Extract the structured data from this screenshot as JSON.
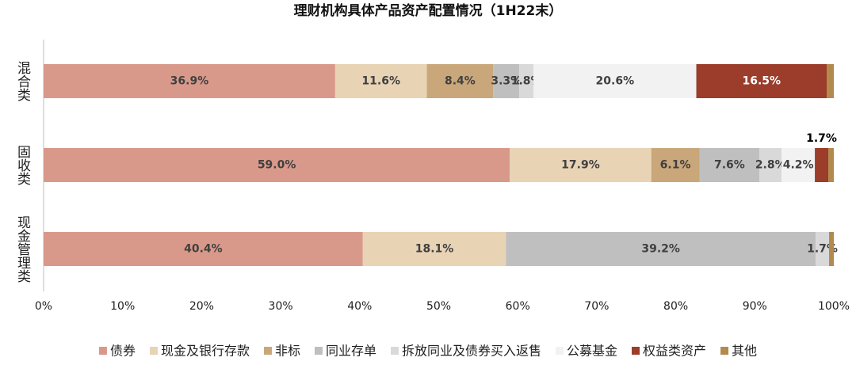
{
  "chart_data": {
    "type": "stacked-barh",
    "title": "理财机构具体产品资产配置情况（1H22末）",
    "categories": [
      "混合类",
      "固收类",
      "现金管理类"
    ],
    "series": [
      {
        "name": "债券",
        "color": "#d9998a",
        "values": [
          36.9,
          59.0,
          40.4
        ],
        "value_labels": [
          "36.9%",
          "59.0%",
          "40.4%"
        ]
      },
      {
        "name": "现金及银行存款",
        "color": "#e8d3b5",
        "values": [
          11.6,
          17.9,
          18.1
        ],
        "value_labels": [
          "11.6%",
          "17.9%",
          "18.1%"
        ]
      },
      {
        "name": "非标",
        "color": "#c9a77a",
        "values": [
          8.4,
          6.1,
          0
        ],
        "value_labels": [
          "8.4%",
          "6.1%",
          null
        ]
      },
      {
        "name": "同业存单",
        "color": "#bfbfbf",
        "values": [
          3.3,
          7.6,
          39.2
        ],
        "value_labels": [
          "3.3%",
          "7.6%",
          "39.2%"
        ]
      },
      {
        "name": "拆放同业及债券买入返售",
        "color": "#d9d9d9",
        "values": [
          1.8,
          2.8,
          1.7
        ],
        "value_labels": [
          "1.8%",
          "2.8%",
          "1.7%"
        ]
      },
      {
        "name": "公募基金",
        "color": "#f2f2f2",
        "values": [
          20.6,
          4.2,
          0
        ],
        "value_labels": [
          "20.6%",
          "4.2%",
          null
        ]
      },
      {
        "name": "权益类资产",
        "color": "#9b3d2a",
        "values": [
          16.5,
          1.7,
          0
        ],
        "value_labels": [
          "16.5%",
          "1.7%",
          null
        ]
      },
      {
        "name": "其他",
        "color": "#b38a4d",
        "values": [
          0.9,
          0.7,
          0.6
        ],
        "value_labels": [
          null,
          null,
          null
        ]
      }
    ],
    "xlim": [
      0,
      100
    ],
    "xticks": [
      {
        "value": 0,
        "label": "0%"
      },
      {
        "value": 10,
        "label": "10%"
      },
      {
        "value": 20,
        "label": "20%"
      },
      {
        "value": 30,
        "label": "30%"
      },
      {
        "value": 40,
        "label": "40%"
      },
      {
        "value": 50,
        "label": "50%"
      },
      {
        "value": 60,
        "label": "60%"
      },
      {
        "value": 70,
        "label": "70%"
      },
      {
        "value": 80,
        "label": "80%"
      },
      {
        "value": 90,
        "label": "90%"
      },
      {
        "value": 100,
        "label": "100%"
      }
    ],
    "legend": "bottom"
  }
}
